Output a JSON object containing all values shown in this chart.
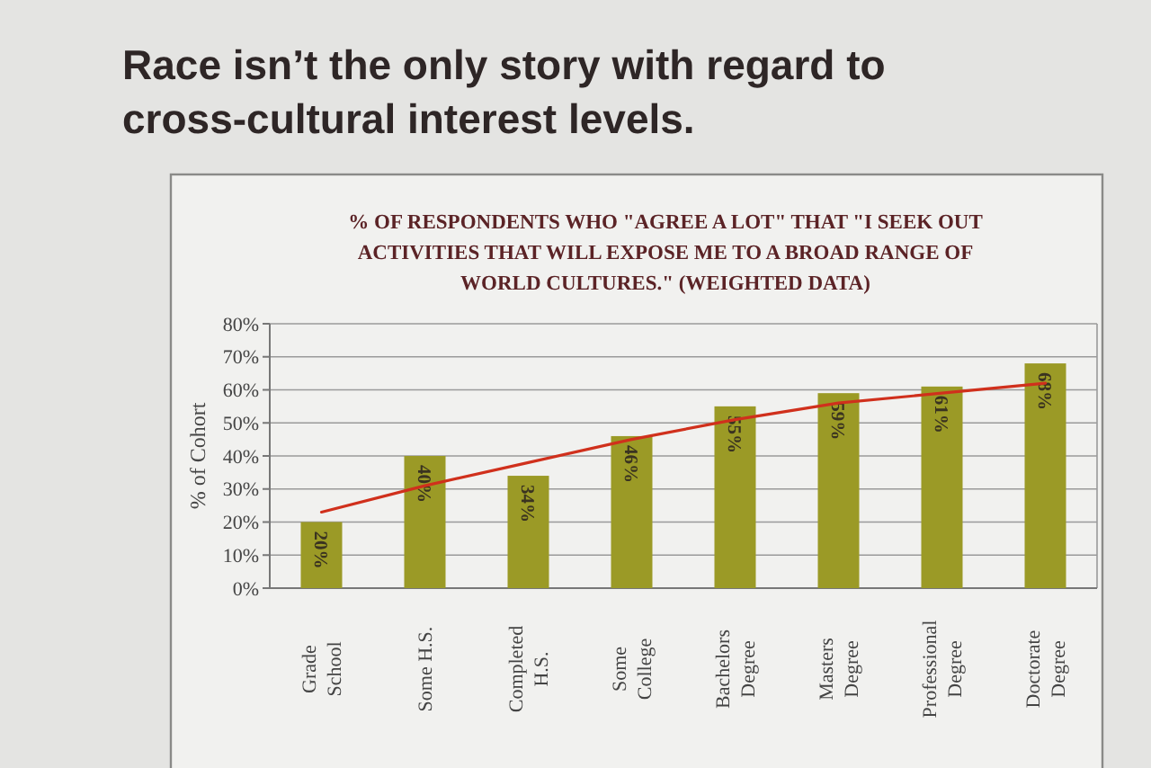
{
  "chart_data": {
    "type": "bar",
    "title": "Race isn’t the only story with regard to cross-cultural interest levels.",
    "subtitle": "% OF RESPONDENTS WHO \"AGREE A LOT\" THAT \"I SEEK OUT ACTIVITIES THAT WILL EXPOSE ME TO A BROAD RANGE OF WORLD CULTURES.\" (WEIGHTED DATA)",
    "ylabel": "% of Cohort",
    "categories": [
      "Grade School",
      "Some H.S.",
      "Completed H.S.",
      "Some College",
      "Bachelors Degree",
      "Masters Degree",
      "Professional Degree",
      "Doctorate Degree"
    ],
    "series": [
      {
        "color": "#9b9a26",
        "values": [
          20,
          40,
          34,
          46,
          55,
          59,
          61,
          68
        ],
        "value_labels": [
          "20%",
          "40%",
          "34%",
          "46%",
          "55%",
          "59%",
          "61%",
          "68%"
        ]
      },
      {
        "type": "line",
        "color": "#d0301c",
        "values": [
          23,
          31,
          38,
          45,
          51,
          56,
          59,
          62
        ]
      }
    ],
    "ylim": [
      0,
      80
    ],
    "yticks": [
      {
        "value": 0,
        "label": "0%"
      },
      {
        "value": 10,
        "label": "10%"
      },
      {
        "value": 20,
        "label": "20%"
      },
      {
        "value": 30,
        "label": "30%"
      },
      {
        "value": 40,
        "label": "40%"
      },
      {
        "value": 50,
        "label": "50%"
      },
      {
        "value": 60,
        "label": "60%"
      },
      {
        "value": 70,
        "label": "70%"
      },
      {
        "value": 80,
        "label": "80%"
      }
    ],
    "grid": "y"
  }
}
